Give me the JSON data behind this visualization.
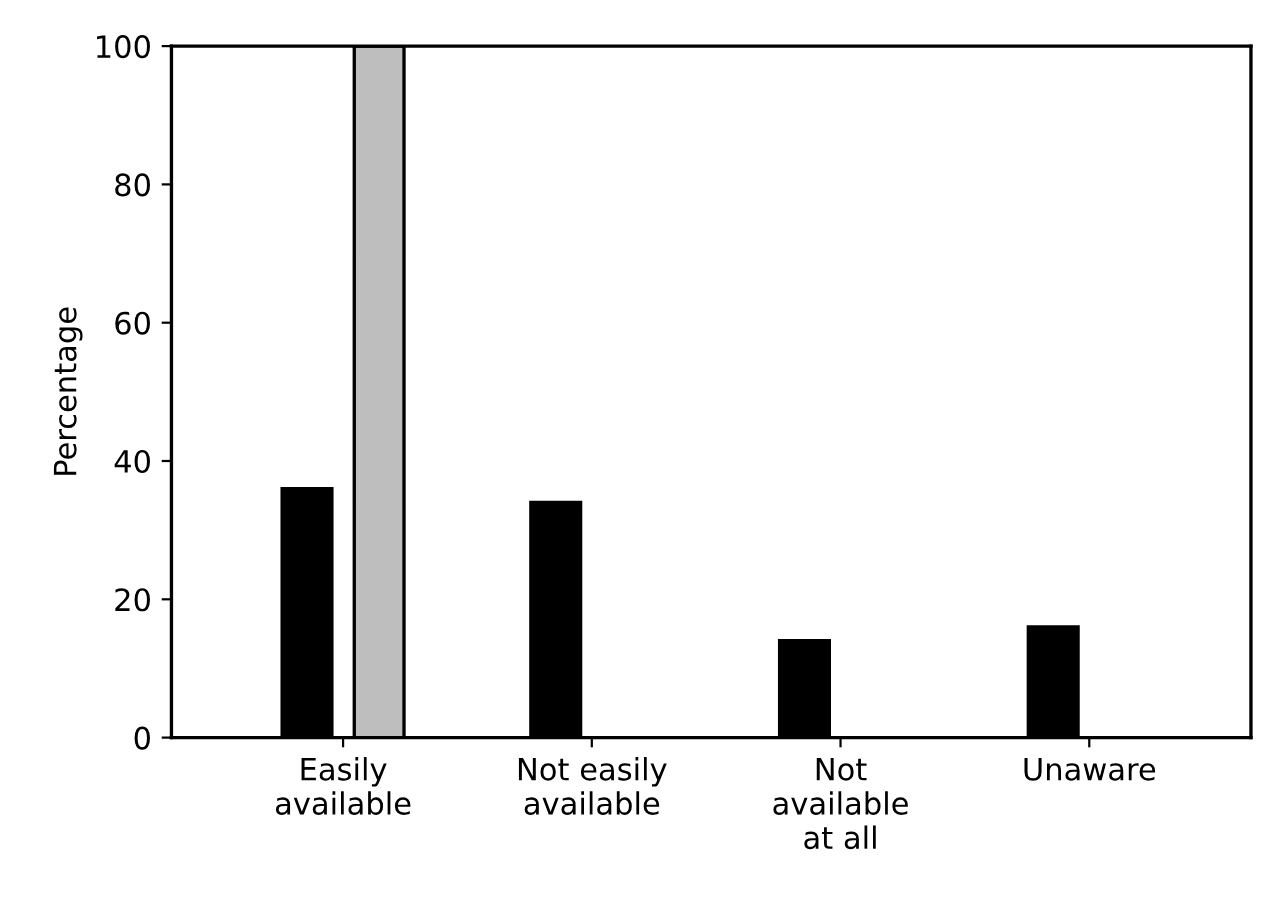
{
  "chart_data": {
    "type": "bar",
    "ylabel": "Percentage",
    "categories": [
      "Easily\navailable",
      "Not easily\navailable",
      "Not\navailable\nat all",
      "Unaware"
    ],
    "series": [
      {
        "color": "#000000",
        "values": [
          36,
          34,
          14,
          16
        ]
      },
      {
        "color": "#bebebe",
        "values": [
          100,
          null,
          null,
          null
        ]
      }
    ],
    "ylim": [
      0,
      100
    ],
    "yticks": [
      0,
      20,
      40,
      60,
      80,
      100
    ],
    "grid": false,
    "legend": false
  }
}
